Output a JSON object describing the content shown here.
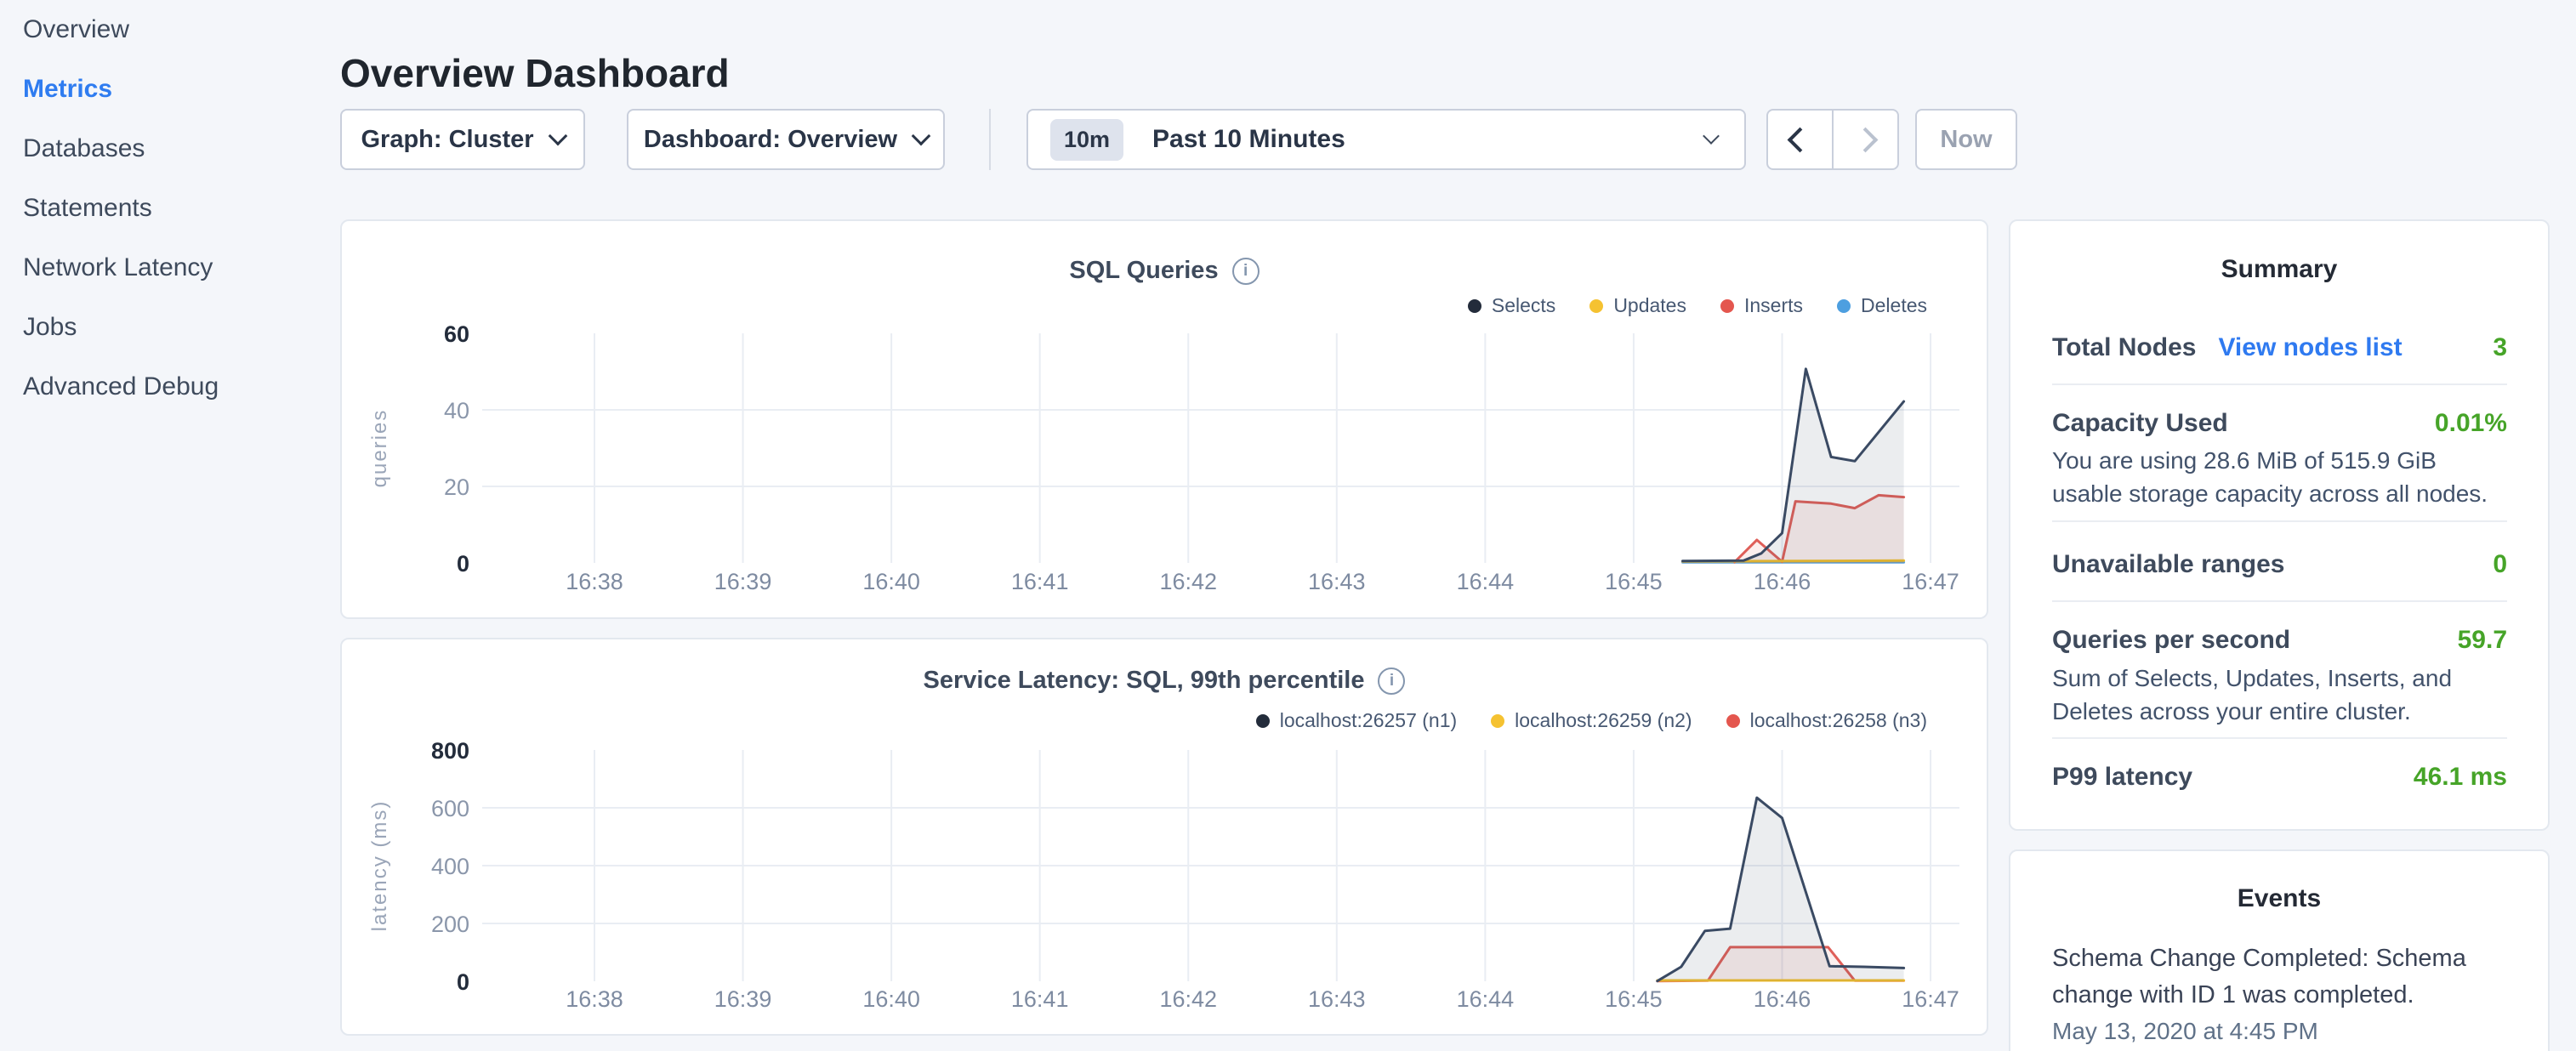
{
  "sidebar": {
    "items": [
      {
        "label": "Overview",
        "active": false
      },
      {
        "label": "Metrics",
        "active": true
      },
      {
        "label": "Databases",
        "active": false
      },
      {
        "label": "Statements",
        "active": false
      },
      {
        "label": "Network Latency",
        "active": false
      },
      {
        "label": "Jobs",
        "active": false
      },
      {
        "label": "Advanced Debug",
        "active": false
      }
    ]
  },
  "header": {
    "title": "Overview Dashboard"
  },
  "toolbar": {
    "graph_dropdown": {
      "label": "Graph: Cluster"
    },
    "dashboard_dropdown": {
      "label": "Dashboard: Overview"
    },
    "time_selector": {
      "badge": "10m",
      "label": "Past 10 Minutes"
    },
    "now_button_label": "Now"
  },
  "summary": {
    "title": "Summary",
    "rows": [
      {
        "label": "Total Nodes",
        "link": "View nodes list",
        "value": "3"
      },
      {
        "label": "Capacity Used",
        "value": "0.01%",
        "description": "You are using 28.6 MiB of 515.9 GiB usable storage capacity across all nodes."
      },
      {
        "label": "Unavailable ranges",
        "value": "0"
      },
      {
        "label": "Queries per second",
        "value": "59.7",
        "description": "Sum of Selects, Updates, Inserts, and Deletes across your entire cluster."
      },
      {
        "label": "P99 latency",
        "value": "46.1 ms"
      }
    ]
  },
  "events": {
    "title": "Events",
    "items": [
      {
        "message": "Schema Change Completed: Schema change with ID 1 was completed.",
        "timestamp": "May 13, 2020 at 4:45 PM"
      }
    ]
  },
  "colors": {
    "accent_blue": "#2F7CF0",
    "value_green": "#46A428",
    "series_navy": "#3A4A63",
    "series_yellow": "#F1BE2D",
    "series_red": "#DF5F59",
    "series_blue": "#58A0DB",
    "gridline": "#E9EDF3"
  },
  "chart_data": [
    {
      "type": "area",
      "title": "SQL Queries",
      "ylabel": "queries",
      "x_ticks": [
        "16:38",
        "16:39",
        "16:40",
        "16:41",
        "16:42",
        "16:43",
        "16:44",
        "16:45",
        "16:46",
        "16:47"
      ],
      "y_ticks": [
        0,
        20,
        40,
        60
      ],
      "ylim": [
        0,
        60
      ],
      "grid": true,
      "legend_position": "top-right",
      "series": [
        {
          "name": "Selects",
          "color": "#3A4A63",
          "dot_color": "#232C3B",
          "fill": "rgba(58,74,99,0.10)",
          "points": [
            [
              45.33,
              0.5
            ],
            [
              45.74,
              0.6
            ],
            [
              45.86,
              2.5
            ],
            [
              46.0,
              7.8
            ],
            [
              46.16,
              50.7
            ],
            [
              46.33,
              27.7
            ],
            [
              46.49,
              26.6
            ],
            [
              46.82,
              42.2
            ]
          ]
        },
        {
          "name": "Updates",
          "color": "#F1BE2D",
          "dot_color": "#F5C231",
          "fill": "rgba(241,190,45,0.10)",
          "points": [
            [
              45.33,
              0.4
            ],
            [
              46.82,
              0.6
            ]
          ]
        },
        {
          "name": "Inserts",
          "color": "#DF5F59",
          "dot_color": "#E4564E",
          "fill": "rgba(223,95,89,0.10)",
          "points": [
            [
              45.68,
              0.2
            ],
            [
              45.83,
              6
            ],
            [
              46.0,
              0.3
            ],
            [
              46.09,
              16.1
            ],
            [
              46.33,
              15.5
            ],
            [
              46.49,
              14.3
            ],
            [
              46.65,
              17.7
            ],
            [
              46.82,
              17.2
            ]
          ]
        },
        {
          "name": "Deletes",
          "color": "#58A0DB",
          "dot_color": "#4D9FE0",
          "fill": "rgba(88,160,219,0.10)",
          "points": [
            [
              45.33,
              0.15
            ],
            [
              46.82,
              0.15
            ]
          ]
        }
      ]
    },
    {
      "type": "area",
      "title": "Service Latency: SQL, 99th percentile",
      "ylabel": "latency (ms)",
      "x_ticks": [
        "16:38",
        "16:39",
        "16:40",
        "16:41",
        "16:42",
        "16:43",
        "16:44",
        "16:45",
        "16:46",
        "16:47"
      ],
      "y_ticks": [
        0,
        200,
        400,
        600,
        800
      ],
      "ylim": [
        0,
        800
      ],
      "grid": true,
      "legend_position": "top-right",
      "series": [
        {
          "name": "localhost:26257 (n1)",
          "color": "#3A4A63",
          "dot_color": "#232C3B",
          "fill": "rgba(58,74,99,0.10)",
          "points": [
            [
              45.16,
              1
            ],
            [
              45.32,
              50
            ],
            [
              45.48,
              174
            ],
            [
              45.65,
              182
            ],
            [
              45.83,
              635
            ],
            [
              46.0,
              565
            ],
            [
              46.32,
              52
            ],
            [
              46.55,
              50
            ],
            [
              46.82,
              46
            ]
          ]
        },
        {
          "name": "localhost:26259 (n2)",
          "color": "#F1BE2D",
          "dot_color": "#F5C231",
          "fill": "rgba(241,190,45,0.10)",
          "points": [
            [
              45.16,
              3
            ],
            [
              46.82,
              3
            ]
          ]
        },
        {
          "name": "localhost:26258 (n3)",
          "color": "#DF5F59",
          "dot_color": "#E4564E",
          "fill": "rgba(223,95,89,0.10)",
          "points": [
            [
              45.16,
              1
            ],
            [
              45.5,
              2
            ],
            [
              45.65,
              118
            ],
            [
              46.31,
              118
            ],
            [
              46.49,
              2
            ],
            [
              46.82,
              2
            ]
          ]
        }
      ]
    }
  ]
}
